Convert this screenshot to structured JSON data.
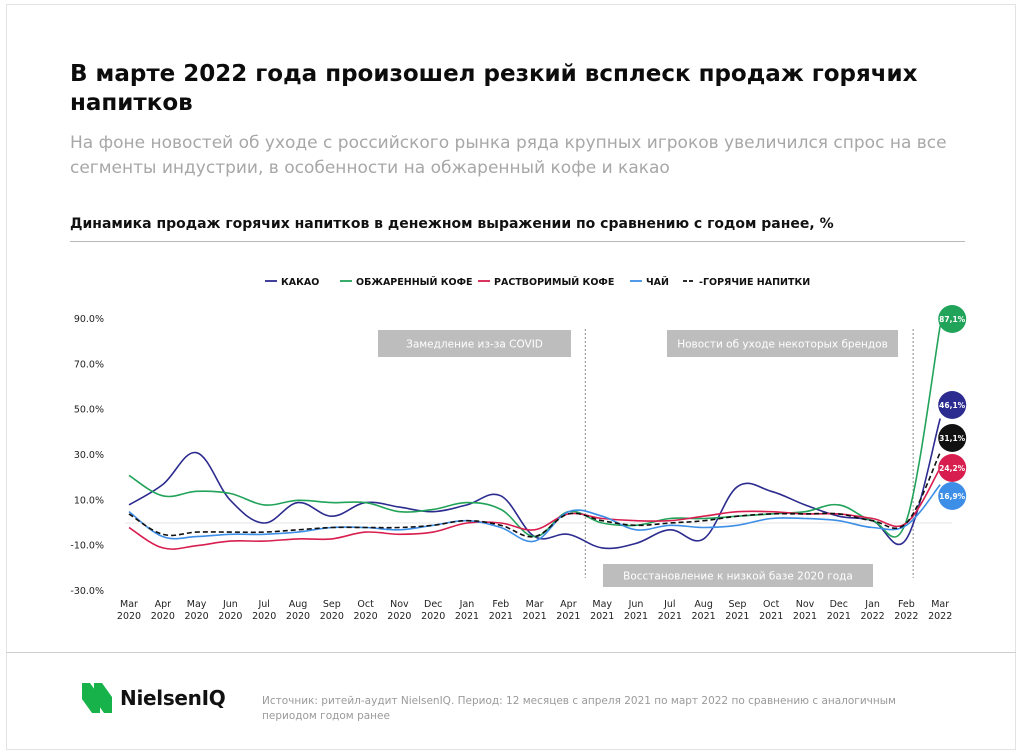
{
  "title": "В марте 2022 года произошел резкий всплеск продаж горячих напитков",
  "subtitle": "На фоне новостей об уходе с российского рынка ряда крупных игроков увеличился спрос на все сегменты индустрии, в особенности на обжаренный кофе и какао",
  "chart_heading": "Динамика продаж горячих напитков в денежном выражении по сравнению с годом ранее, %",
  "footer": {
    "logo_text": "NielsenIQ",
    "source": "Источник: ритейл-аудит NielsenIQ. Период: 12 месяцев с апреля 2021 по март 2022 по сравнению с аналогичным периодом годом ранее"
  },
  "colors": {
    "cocoa": "#2c2b8f",
    "roasted_coffee": "#22a35a",
    "instant_coffee": "#d81e4f",
    "tea": "#3d8ee6",
    "hot_drinks": "#111111",
    "annotation_box": "#bdbdbd",
    "logo_green": "#18b24b"
  },
  "chart_data": {
    "type": "line",
    "categories": [
      [
        "Mar",
        "2020"
      ],
      [
        "Apr",
        "2020"
      ],
      [
        "May",
        "2020"
      ],
      [
        "Jun",
        "2020"
      ],
      [
        "Jul",
        "2020"
      ],
      [
        "Aug",
        "2020"
      ],
      [
        "Sep",
        "2020"
      ],
      [
        "Oct",
        "2020"
      ],
      [
        "Nov",
        "2020"
      ],
      [
        "Dec",
        "2020"
      ],
      [
        "Jan",
        "2021"
      ],
      [
        "Feb",
        "2021"
      ],
      [
        "Mar",
        "2021"
      ],
      [
        "Apr",
        "2021"
      ],
      [
        "May",
        "2021"
      ],
      [
        "Jun",
        "2021"
      ],
      [
        "Jul",
        "2021"
      ],
      [
        "Aug",
        "2021"
      ],
      [
        "Sep",
        "2021"
      ],
      [
        "Oct",
        "2021"
      ],
      [
        "Nov",
        "2021"
      ],
      [
        "Dec",
        "2021"
      ],
      [
        "Jan",
        "2022"
      ],
      [
        "Feb",
        "2022"
      ],
      [
        "Mar",
        "2022"
      ]
    ],
    "y_ticks": [
      "90.0%",
      "70.0%",
      "50.0%",
      "30.0%",
      "10.0%",
      "-10.0%",
      "-30.0%"
    ],
    "ylim": [
      -30,
      90
    ],
    "legend_position": "top",
    "series": [
      {
        "key": "cocoa",
        "name": "КАКАО",
        "color": "#2c2b8f",
        "dash": false,
        "values": [
          8,
          17,
          31,
          10,
          0,
          9,
          3,
          9,
          7,
          5,
          8,
          12,
          -6,
          -5,
          -11,
          -9,
          -3,
          -7,
          16,
          14,
          8,
          3,
          1,
          -7,
          46.1
        ],
        "end_label": "46,1%"
      },
      {
        "key": "roasted_coffee",
        "name": "ОБЖАРЕННЫЙ КОФЕ",
        "color": "#22a35a",
        "dash": false,
        "values": [
          21,
          12,
          14,
          13,
          8,
          10,
          9,
          9,
          5,
          6,
          9,
          6,
          -6,
          5,
          0,
          -1,
          2,
          2,
          3,
          4,
          5,
          8,
          1,
          1,
          87.1
        ],
        "end_label": "87,1%"
      },
      {
        "key": "instant_coffee",
        "name": "РАСТВОРИМЫЙ КОФЕ",
        "color": "#d81e4f",
        "dash": false,
        "values": [
          -2,
          -11,
          -10,
          -8,
          -8,
          -7,
          -7,
          -4,
          -5,
          -4,
          0,
          0,
          -3,
          4,
          2,
          1,
          1,
          3,
          5,
          5,
          4,
          4,
          2,
          0,
          24.2
        ],
        "end_label": "24,2%"
      },
      {
        "key": "tea",
        "name": "ЧАЙ",
        "color": "#3d8ee6",
        "dash": false,
        "values": [
          5,
          -6,
          -6,
          -5,
          -5,
          -4,
          -2,
          -2,
          -3,
          -1,
          1,
          -2,
          -8,
          5,
          3,
          -3,
          -1,
          -2,
          -1,
          2,
          2,
          1,
          -2,
          -1,
          16.9
        ],
        "end_label": "16,9%"
      },
      {
        "key": "hot_drinks",
        "name": "-ГОРЯЧИЕ НАПИТКИ",
        "color": "#111111",
        "dash": true,
        "values": [
          4,
          -5,
          -4,
          -4,
          -4,
          -3,
          -2,
          -2,
          -2,
          -1,
          1,
          -1,
          -6,
          4,
          1,
          -1,
          0,
          1,
          3,
          4,
          4,
          4,
          1,
          0,
          31.1
        ],
        "end_label": "31,1%"
      }
    ],
    "annotations": [
      {
        "text": "Замедление из-за COVID"
      },
      {
        "text": "Новости об уходе некоторых брендов"
      },
      {
        "text": "Восстановление к низкой базе 2020 года"
      }
    ]
  }
}
